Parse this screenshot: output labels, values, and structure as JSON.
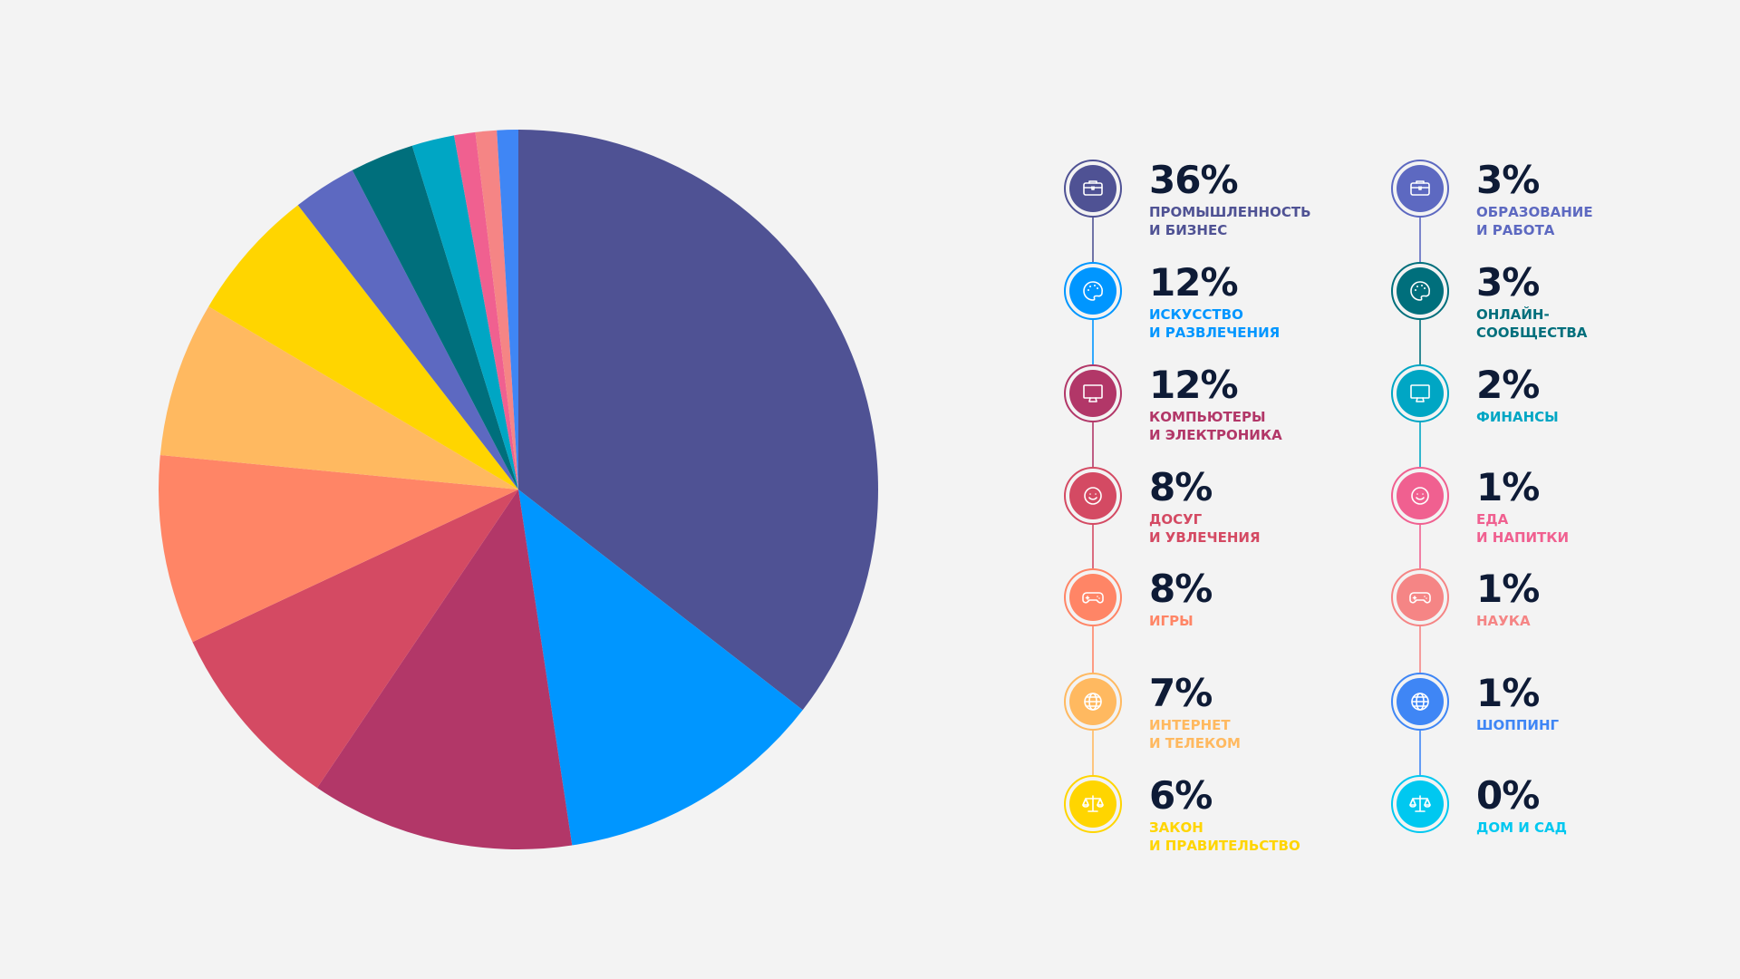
{
  "chart_data": {
    "type": "pie",
    "slices": [
      {
        "label": "ПРОМЫШЛЕННОСТЬ И БИЗНЕС",
        "value": 36,
        "color": "#4f5294"
      },
      {
        "label": "ИСКУССТВО И РАЗВЛЕЧЕНИЯ",
        "value": 12,
        "color": "#0096ff"
      },
      {
        "label": "КОМПЬЮТЕРЫ И ЭЛЕКТРОНИКА",
        "value": 12,
        "color": "#b23768"
      },
      {
        "label": "ДОСУГ И УВЛЕЧЕНИЯ",
        "value": 8,
        "color": "#d44a63"
      },
      {
        "label": "ИГРЫ",
        "value": 8,
        "color": "#ff8566"
      },
      {
        "label": "ИНТЕРНЕТ И ТЕЛЕКОМ",
        "value": 7,
        "color": "#ffb960"
      },
      {
        "label": "ЗАКОН И ПРАВИТЕЛЬСТВО",
        "value": 6,
        "color": "#ffd500"
      },
      {
        "label": "ОБРАЗОВАНИЕ И РАБОТА",
        "value": 3,
        "color": "#5d69c1"
      },
      {
        "label": "ОНЛАЙН-СООБЩЕСТВА",
        "value": 3,
        "color": "#006f7c"
      },
      {
        "label": "ФИНАНСЫ",
        "value": 2,
        "color": "#00a6c4"
      },
      {
        "label": "ЕДА И НАПИТКИ",
        "value": 1,
        "color": "#f06090"
      },
      {
        "label": "НАУКА",
        "value": 1,
        "color": "#f58585"
      },
      {
        "label": "ШОППИНГ",
        "value": 1,
        "color": "#3f86f5"
      },
      {
        "label": "ДОМ И САД",
        "value": 0,
        "color": "#00c8f0"
      }
    ]
  },
  "legend": {
    "left": [
      {
        "pct": "36%",
        "line1": "ПРОМЫШЛЕННОСТЬ",
        "line2": "И БИЗНЕС",
        "color": "#4f5294",
        "icon": "briefcase-icon"
      },
      {
        "pct": "12%",
        "line1": "ИСКУССТВО",
        "line2": "И РАЗВЛЕЧЕНИЯ",
        "color": "#0096ff",
        "icon": "palette-icon"
      },
      {
        "pct": "12%",
        "line1": "КОМПЬЮТЕРЫ",
        "line2": "И ЭЛЕКТРОНИКА",
        "color": "#b23768",
        "icon": "monitor-icon"
      },
      {
        "pct": "8%",
        "line1": "ДОСУГ",
        "line2": "И УВЛЕЧЕНИЯ",
        "color": "#d44a63",
        "icon": "smiley-icon"
      },
      {
        "pct": "8%",
        "line1": "ИГРЫ",
        "line2": "",
        "color": "#ff8566",
        "icon": "gamepad-icon"
      },
      {
        "pct": "7%",
        "line1": "ИНТЕРНЕТ",
        "line2": "И ТЕЛЕКОМ",
        "color": "#ffb960",
        "icon": "globe-icon"
      },
      {
        "pct": "6%",
        "line1": "ЗАКОН",
        "line2": "И ПРАВИТЕЛЬСТВО",
        "color": "#ffd500",
        "icon": "scales-icon"
      }
    ],
    "right": [
      {
        "pct": "3%",
        "line1": "ОБРАЗОВАНИЕ",
        "line2": "И РАБОТА",
        "color": "#5d69c1",
        "icon": "briefcase-icon"
      },
      {
        "pct": "3%",
        "line1": "ОНЛАЙН-",
        "line2": "СООБЩЕСТВА",
        "color": "#006f7c",
        "icon": "palette-icon"
      },
      {
        "pct": "2%",
        "line1": "ФИНАНСЫ",
        "line2": "",
        "color": "#00a6c4",
        "icon": "monitor-icon"
      },
      {
        "pct": "1%",
        "line1": "ЕДА",
        "line2": "И НАПИТКИ",
        "color": "#f06090",
        "icon": "smiley-icon"
      },
      {
        "pct": "1%",
        "line1": "НАУКА",
        "line2": "",
        "color": "#f58585",
        "icon": "gamepad-icon"
      },
      {
        "pct": "1%",
        "line1": "ШОППИНГ",
        "line2": "",
        "color": "#3f86f5",
        "icon": "globe-icon"
      },
      {
        "pct": "0%",
        "line1": "ДОМ И САД",
        "line2": "",
        "color": "#00c8f0",
        "icon": "scales-icon"
      }
    ]
  }
}
